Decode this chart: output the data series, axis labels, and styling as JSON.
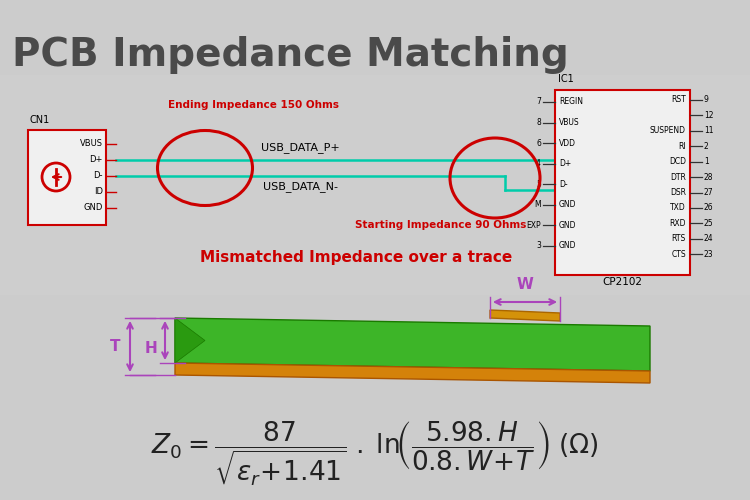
{
  "title": "PCB Impedance Matching",
  "title_color": "#4a4a4a",
  "bg_color": "#d0d0d0",
  "schematic_bg": "#e0e0e0",
  "cn1_label": "CN1",
  "cn1_pins": [
    "VBUS",
    "D+",
    "D-",
    "ID",
    "GND"
  ],
  "ic1_label": "IC1",
  "ic1_bottom": "CP2102",
  "usb_data_p": "USB_DATA_P+",
  "usb_data_n": "USB_DATA_N-",
  "ending_label": "Ending Impedance 150 Ohms",
  "starting_label": "Starting Impedance 90 Ohms",
  "mismatch_label": "Mismatched Impedance over a trace",
  "mismatch_color": "#cc0000",
  "trace_color": "#00ccaa",
  "circle_color": "#cc0000",
  "connector_color": "#cc0000",
  "ic_border_color": "#cc0000",
  "trace_green": "#3db528",
  "trace_orange": "#d4820a",
  "dim_color": "#aa44bb",
  "formula_color": "#222222"
}
